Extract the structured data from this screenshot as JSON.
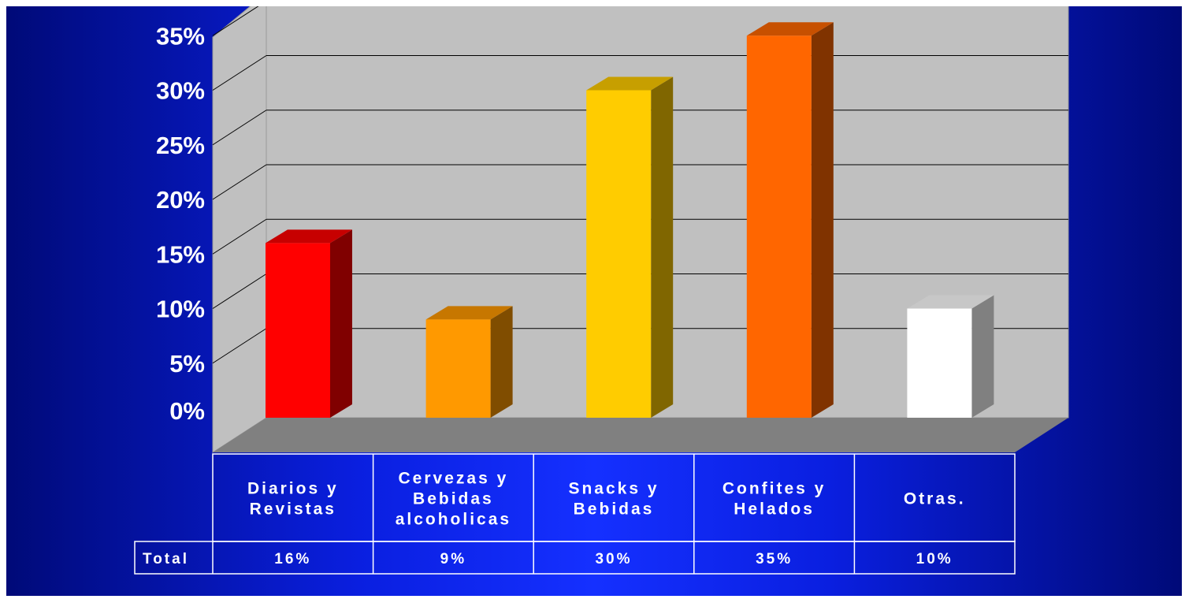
{
  "chart_data": {
    "type": "bar",
    "title": "",
    "xlabel": "",
    "ylabel": "",
    "ylim": [
      0,
      35
    ],
    "yticks": [
      "0%",
      "5%",
      "10%",
      "15%",
      "20%",
      "25%",
      "30%",
      "35%"
    ],
    "grid": true,
    "categories": [
      [
        "Diarios y",
        "Revistas"
      ],
      [
        "Cervezas y",
        "Bebidas",
        "alcoholicas"
      ],
      [
        "Snacks y",
        "Bebidas"
      ],
      [
        "Confites y",
        "Helados"
      ],
      [
        "Otras."
      ]
    ],
    "series": [
      {
        "name": "Total",
        "values": [
          16,
          9,
          30,
          35,
          10
        ],
        "labels": [
          "16%",
          "9%",
          "30%",
          "35%",
          "10%"
        ]
      }
    ],
    "colors": {
      "bars": [
        "#ff0000",
        "#ff9900",
        "#ffcc00",
        "#ff6600",
        "#ffffff"
      ],
      "wall": "#c0c0c0",
      "floor": "#808080",
      "background": "#0a1fe0"
    }
  }
}
